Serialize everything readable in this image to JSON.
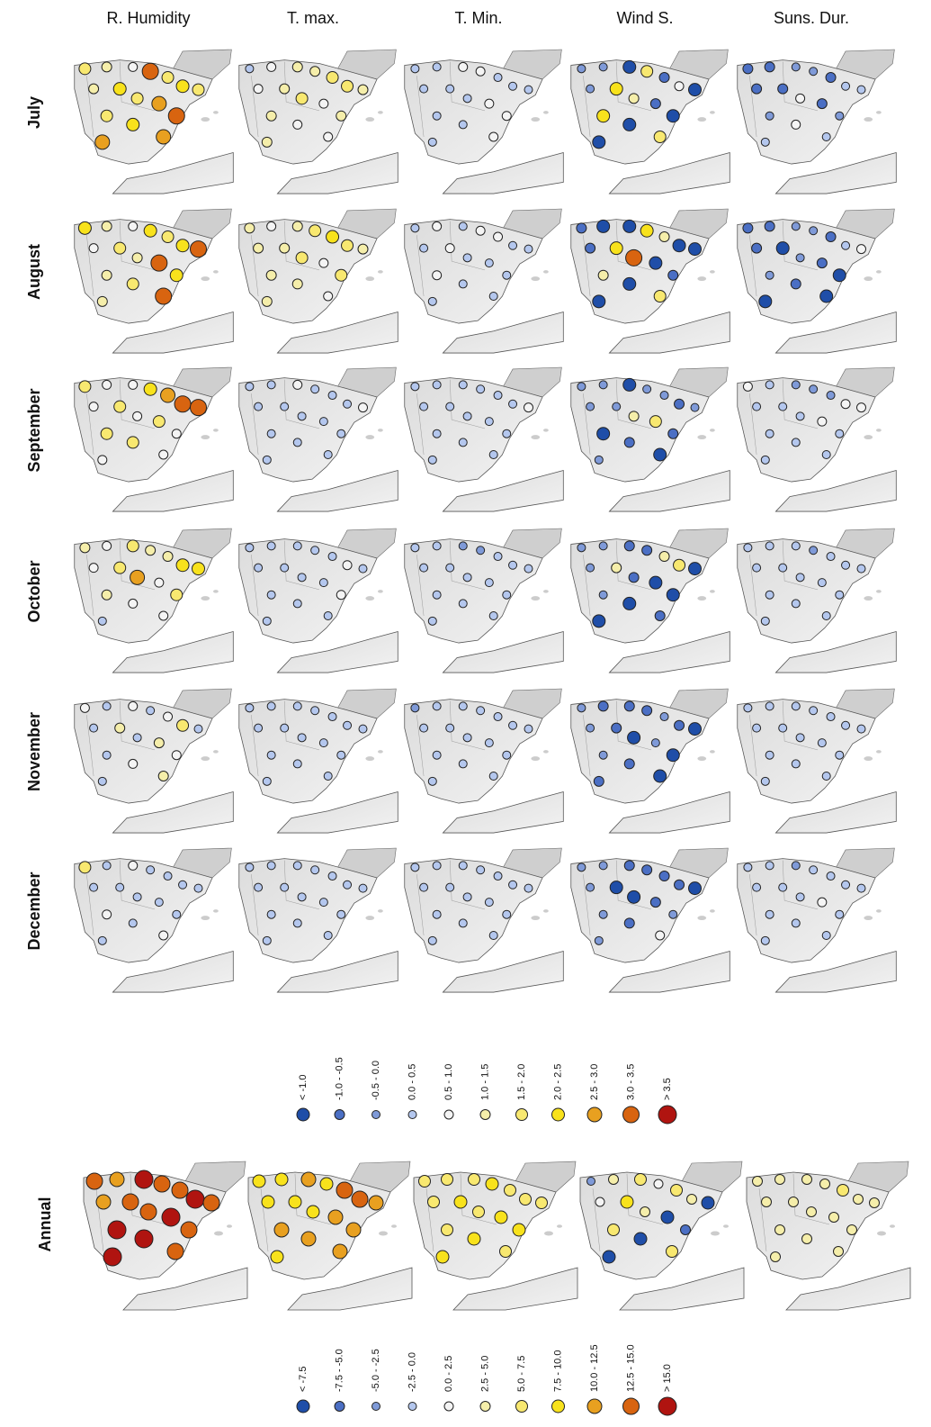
{
  "columns": [
    "R. Humidity",
    "T. max.",
    "T. Min.",
    "Wind S.",
    "Suns. Dur."
  ],
  "rows": [
    {
      "label": "July",
      "maps": [
        [
          6,
          5,
          4,
          9,
          6,
          7,
          6,
          5,
          7,
          6,
          8,
          9,
          6,
          7,
          8,
          8
        ],
        [
          3,
          4,
          5,
          5,
          6,
          6,
          5,
          4,
          5,
          6,
          4,
          5,
          5,
          4,
          4,
          5
        ],
        [
          3,
          3,
          4,
          4,
          3,
          3,
          3,
          3,
          3,
          3,
          4,
          4,
          3,
          3,
          4,
          3
        ],
        [
          2,
          2,
          0,
          6,
          1,
          4,
          0,
          2,
          7,
          5,
          1,
          0,
          7,
          0,
          6,
          0
        ],
        [
          1,
          1,
          2,
          2,
          1,
          3,
          3,
          1,
          1,
          4,
          1,
          2,
          2,
          4,
          3,
          3
        ]
      ]
    },
    {
      "label": "August",
      "maps": [
        [
          7,
          5,
          4,
          7,
          6,
          7,
          9,
          4,
          6,
          5,
          9,
          7,
          5,
          6,
          9,
          5
        ],
        [
          5,
          4,
          5,
          6,
          7,
          6,
          5,
          5,
          5,
          6,
          4,
          6,
          5,
          5,
          4,
          5
        ],
        [
          3,
          4,
          3,
          4,
          4,
          3,
          3,
          3,
          4,
          3,
          3,
          3,
          4,
          3,
          3,
          3
        ],
        [
          1,
          0,
          0,
          7,
          5,
          0,
          0,
          1,
          7,
          9,
          0,
          1,
          5,
          0,
          6,
          0
        ],
        [
          1,
          1,
          2,
          2,
          1,
          3,
          4,
          1,
          0,
          2,
          1,
          0,
          2,
          1,
          0,
          0
        ]
      ]
    },
    {
      "label": "September",
      "maps": [
        [
          6,
          4,
          4,
          7,
          8,
          9,
          9,
          4,
          6,
          4,
          6,
          4,
          6,
          6,
          4,
          4
        ],
        [
          3,
          3,
          4,
          3,
          3,
          3,
          4,
          3,
          3,
          3,
          3,
          3,
          3,
          3,
          3,
          3
        ],
        [
          3,
          3,
          3,
          3,
          3,
          3,
          4,
          3,
          3,
          3,
          3,
          3,
          3,
          3,
          3,
          3
        ],
        [
          2,
          2,
          0,
          2,
          2,
          1,
          2,
          2,
          2,
          5,
          6,
          1,
          0,
          1,
          0,
          2
        ],
        [
          4,
          3,
          2,
          2,
          2,
          4,
          4,
          3,
          3,
          3,
          4,
          3,
          3,
          3,
          3,
          3
        ]
      ]
    },
    {
      "label": "October",
      "maps": [
        [
          5,
          4,
          6,
          5,
          5,
          7,
          7,
          4,
          6,
          8,
          4,
          6,
          5,
          4,
          4,
          3
        ],
        [
          3,
          3,
          3,
          3,
          3,
          4,
          3,
          3,
          3,
          3,
          3,
          4,
          3,
          3,
          3,
          3
        ],
        [
          3,
          3,
          2,
          2,
          3,
          3,
          3,
          3,
          3,
          3,
          3,
          3,
          3,
          3,
          3,
          3
        ],
        [
          2,
          2,
          1,
          1,
          5,
          6,
          0,
          2,
          5,
          1,
          0,
          0,
          2,
          0,
          1,
          0
        ],
        [
          3,
          3,
          3,
          2,
          3,
          3,
          3,
          3,
          3,
          3,
          3,
          3,
          3,
          3,
          3,
          3
        ]
      ]
    },
    {
      "label": "November",
      "maps": [
        [
          4,
          3,
          4,
          3,
          4,
          6,
          3,
          3,
          5,
          3,
          5,
          4,
          3,
          4,
          5,
          3
        ],
        [
          3,
          3,
          3,
          3,
          3,
          3,
          3,
          3,
          3,
          3,
          3,
          3,
          3,
          3,
          3,
          3
        ],
        [
          2,
          3,
          3,
          3,
          3,
          3,
          3,
          3,
          3,
          3,
          3,
          3,
          3,
          3,
          3,
          3
        ],
        [
          2,
          1,
          1,
          1,
          2,
          1,
          0,
          2,
          1,
          0,
          2,
          0,
          2,
          1,
          0,
          1
        ],
        [
          3,
          3,
          3,
          3,
          3,
          3,
          3,
          3,
          3,
          3,
          3,
          3,
          3,
          3,
          3,
          3
        ]
      ]
    },
    {
      "label": "December",
      "maps": [
        [
          6,
          3,
          4,
          3,
          3,
          3,
          3,
          3,
          3,
          3,
          3,
          3,
          4,
          3,
          4,
          3
        ],
        [
          3,
          3,
          3,
          3,
          3,
          3,
          3,
          3,
          3,
          3,
          3,
          3,
          3,
          3,
          3,
          3
        ],
        [
          3,
          3,
          3,
          3,
          3,
          3,
          3,
          3,
          3,
          3,
          3,
          3,
          3,
          3,
          3,
          3
        ],
        [
          2,
          2,
          1,
          1,
          1,
          1,
          0,
          2,
          0,
          0,
          1,
          2,
          2,
          1,
          4,
          2
        ],
        [
          3,
          3,
          2,
          3,
          3,
          3,
          3,
          3,
          3,
          3,
          4,
          3,
          3,
          3,
          3,
          3
        ]
      ]
    }
  ],
  "legend_monthly": {
    "labels": [
      "< -1.0",
      "-1.0 - -0.5",
      "-0.5 - 0.0",
      "0.0 - 0.5",
      "0.5 - 1.0",
      "1.0 - 1.5",
      "1.5 - 2.0",
      "2.0 - 2.5",
      "2.5 - 3.0",
      "3.0 - 3.5",
      "> 3.5"
    ]
  },
  "annual": {
    "label": "Annual",
    "maps": [
      [
        9,
        8,
        10,
        9,
        9,
        10,
        9,
        8,
        9,
        9,
        10,
        9,
        10,
        10,
        9,
        10
      ],
      [
        7,
        7,
        8,
        7,
        9,
        9,
        8,
        7,
        7,
        7,
        8,
        8,
        8,
        8,
        8,
        7
      ],
      [
        6,
        6,
        6,
        7,
        6,
        6,
        6,
        6,
        7,
        6,
        7,
        7,
        6,
        7,
        6,
        7
      ],
      [
        2,
        5,
        6,
        4,
        6,
        5,
        0,
        4,
        7,
        5,
        0,
        1,
        6,
        0,
        6,
        0
      ],
      [
        5,
        5,
        5,
        5,
        6,
        5,
        5,
        5,
        5,
        5,
        5,
        5,
        5,
        5,
        5,
        5
      ]
    ]
  },
  "legend_annual": {
    "labels": [
      "< -7.5",
      "-7.5 - -5.0",
      "-5.0 - -2.5",
      "-2.5 - 0.0",
      "0.0 - 2.5",
      "2.5 - 5.0",
      "5.0 - 7.5",
      "7.5 - 10.0",
      "10.0 - 12.5",
      "12.5 - 15.0",
      "> 15.0"
    ]
  },
  "colors": [
    "#1f4ea8",
    "#4b6fc4",
    "#7f9ad8",
    "#b4c7ee",
    "#f4f4f4",
    "#f5eeaa",
    "#f8e870",
    "#f8e21c",
    "#e8a020",
    "#d86410",
    "#b01410"
  ]
}
